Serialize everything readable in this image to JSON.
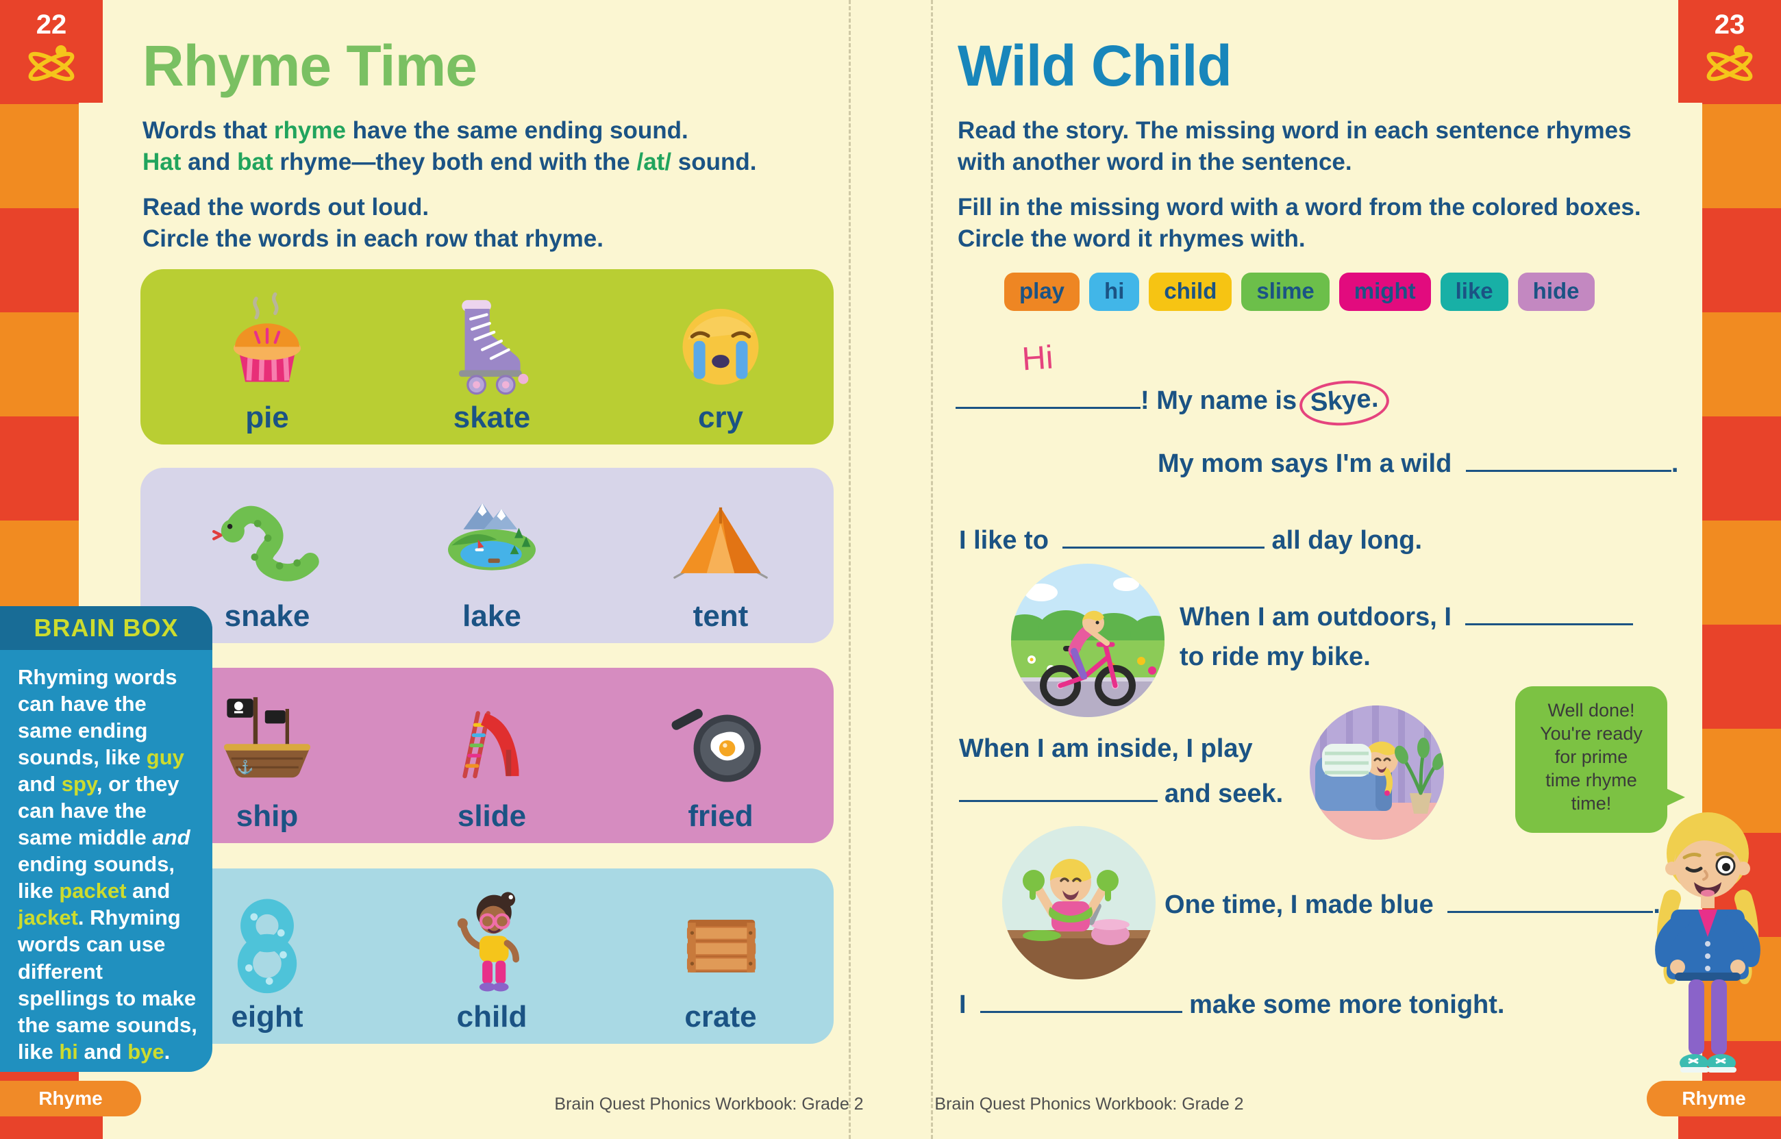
{
  "colors": {
    "paper": "#fbf6d2",
    "stripe_red": "#e8432a",
    "stripe_orange": "#f18b21",
    "title_left_green": "#7ac062",
    "title_right_blue": "#1886bb",
    "body_text_blue": "#1b5384",
    "keyword_green": "#21a45d",
    "row1_bg": "#b9ce33",
    "row2_bg": "#d7d5e9",
    "row3_bg": "#d68cc0",
    "row4_bg": "#a9d9e4",
    "brainbox_bg": "#2090bf",
    "brainbox_header_bg": "#186c96",
    "brainbox_accent": "#cddc2e",
    "tab_orange": "#f08a28",
    "annotation_pink": "#e5437e",
    "bubble_green": "#7cc243"
  },
  "page_left": {
    "page_number": "22",
    "title": "Rhyme Time",
    "intro_line1": [
      {
        "t": "Words that "
      },
      {
        "t": "rhyme",
        "c": "g"
      },
      {
        "t": " have the same ending sound."
      }
    ],
    "intro_line2": [
      {
        "t": "Hat",
        "c": "g"
      },
      {
        "t": " and "
      },
      {
        "t": "bat",
        "c": "g"
      },
      {
        "t": " rhyme—they both end with the "
      },
      {
        "t": "/at/",
        "c": "g"
      },
      {
        "t": " sound."
      }
    ],
    "instr_line1": "Read the words out loud.",
    "instr_line2": "Circle the words in each row that rhyme.",
    "rows": [
      {
        "bg": "#b9ce33",
        "items": [
          {
            "label": "pie",
            "icon": "pie-icon"
          },
          {
            "label": "skate",
            "icon": "skate-icon"
          },
          {
            "label": "cry",
            "icon": "cry-icon"
          }
        ]
      },
      {
        "bg": "#d7d5e9",
        "items": [
          {
            "label": "snake",
            "icon": "snake-icon"
          },
          {
            "label": "lake",
            "icon": "lake-icon"
          },
          {
            "label": "tent",
            "icon": "tent-icon"
          }
        ]
      },
      {
        "bg": "#d68cc0",
        "items": [
          {
            "label": "ship",
            "icon": "ship-icon"
          },
          {
            "label": "slide",
            "icon": "slide-icon"
          },
          {
            "label": "fried",
            "icon": "fried-icon"
          }
        ]
      },
      {
        "bg": "#a9d9e4",
        "items": [
          {
            "label": "eight",
            "icon": "eight-icon"
          },
          {
            "label": "child",
            "icon": "child-icon"
          },
          {
            "label": "crate",
            "icon": "crate-icon"
          }
        ]
      }
    ],
    "brain_box": {
      "title": "BRAIN BOX",
      "body": [
        {
          "t": "Rhyming words can have the same ending sounds, like "
        },
        {
          "t": "guy",
          "c": "hl"
        },
        {
          "t": " and "
        },
        {
          "t": "spy",
          "c": "hl"
        },
        {
          "t": ", or they can have the same middle "
        },
        {
          "t": "and",
          "c": "it"
        },
        {
          "t": " ending sounds, like "
        },
        {
          "t": "packet",
          "c": "hl"
        },
        {
          "t": " and "
        },
        {
          "t": "jacket",
          "c": "hl"
        },
        {
          "t": ". Rhyming words can use different spellings to make the same sounds, like "
        },
        {
          "t": "hi",
          "c": "hl"
        },
        {
          "t": " and "
        },
        {
          "t": "bye",
          "c": "hl"
        },
        {
          "t": "."
        }
      ]
    },
    "tab_label": "Rhyme",
    "footer": "Brain Quest Phonics Workbook: Grade 2"
  },
  "page_right": {
    "page_number": "23",
    "title": "Wild Child",
    "instr1a": "Read the story. The missing word in each sentence rhymes",
    "instr1b": "with another word in the sentence.",
    "instr2a": "Fill in the missing word with a word from the colored boxes.",
    "instr2b": "Circle the word it rhymes with.",
    "word_bank": [
      {
        "word": "play",
        "bg": "#ee8623"
      },
      {
        "word": "hi",
        "bg": "#41b6e8"
      },
      {
        "word": "child",
        "bg": "#f6c413"
      },
      {
        "word": "slime",
        "bg": "#6cbf4a"
      },
      {
        "word": "might",
        "bg": "#e20b7e"
      },
      {
        "word": "like",
        "bg": "#18b0a6"
      },
      {
        "word": "hide",
        "bg": "#c388c1"
      }
    ],
    "story": {
      "written_answer": "Hi",
      "s1_rest": "! My name is",
      "s1_circled": "Skye.",
      "s2_pre": "My mom says I'm a wild",
      "s2_end": ".",
      "s3_pre": "I like to",
      "s3_post": "all day long.",
      "s4_pre": "When I am outdoors, I",
      "s4_post": "to ride my bike.",
      "s5_pre": "When I am inside, I play",
      "s5_post": "and seek.",
      "s6_pre": "One time, I made blue",
      "s6_end": ".",
      "s7_pre": "I",
      "s7_post": "make some more tonight."
    },
    "bubble_lines": [
      "Well done!",
      "You're ready",
      "for prime",
      "time rhyme",
      "time!"
    ],
    "tab_label": "Rhyme",
    "footer": "Brain Quest Phonics Workbook: Grade 2"
  },
  "icons": {
    "corner_icon": "atom-icon",
    "row_icons": [
      "pie-icon",
      "skate-icon",
      "cry-icon",
      "snake-icon",
      "lake-icon",
      "tent-icon",
      "ship-icon",
      "slide-icon",
      "fried-icon",
      "eight-icon",
      "child-icon",
      "crate-icon"
    ],
    "illustrations": [
      "girl-on-bike-photo",
      "hide-and-seek-photo",
      "slime-photo",
      "skye-character"
    ]
  }
}
